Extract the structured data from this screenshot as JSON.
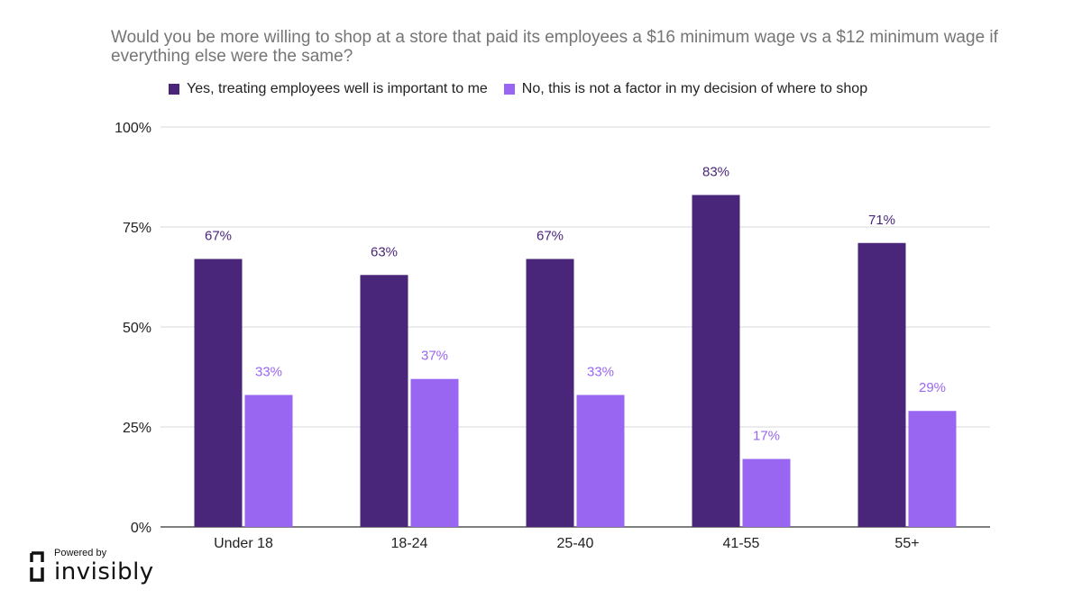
{
  "chart_data": {
    "type": "bar",
    "title": "Would you be more willing to shop at a store that paid its employees a $16 minimum wage vs a $12 minimum wage if everything else were the same?",
    "categories": [
      "Under 18",
      "18-24",
      "25-40",
      "41-55",
      "55+"
    ],
    "series": [
      {
        "name": "Yes, treating employees well is important to me",
        "color": "#4a267a",
        "values": [
          67,
          63,
          67,
          83,
          71
        ],
        "labels": [
          "67%",
          "63%",
          "67%",
          "83%",
          "71%"
        ]
      },
      {
        "name": "No, this is not a factor in my decision of where to shop",
        "color": "#9966f2",
        "values": [
          33,
          37,
          33,
          17,
          29
        ],
        "labels": [
          "33%",
          "37%",
          "33%",
          "17%",
          "29%"
        ]
      }
    ],
    "yticks": [
      "0%",
      "25%",
      "50%",
      "75%",
      "100%"
    ],
    "ylim": [
      0,
      100
    ],
    "xlabel": "",
    "ylabel": "",
    "legend": "top",
    "grid": true
  },
  "branding": {
    "powered_by": "Powered by",
    "name": "invisibly"
  }
}
